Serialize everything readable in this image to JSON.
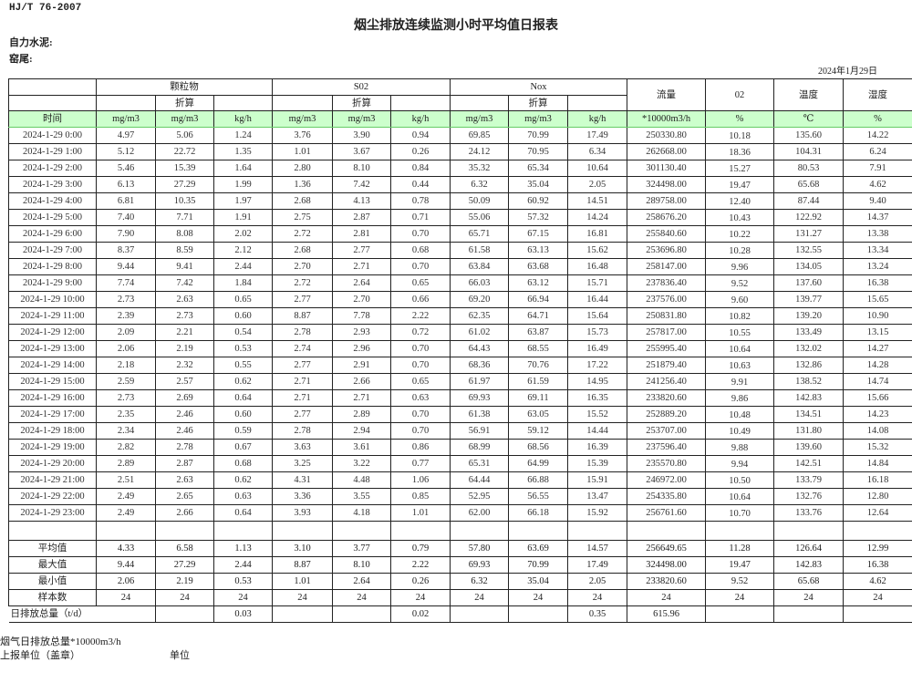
{
  "header": {
    "standard": "HJ/T  76-2007",
    "title": "烟尘排放连续监测小时平均值日报表",
    "company": "自力水泥:",
    "location": "窑尾:",
    "date": "2024年1月29日"
  },
  "table": {
    "groups": {
      "particulate": "颗粒物",
      "so2": "S02",
      "nox": "Nox",
      "flow": "流量",
      "o2": "02",
      "temp": "温度",
      "humidity": "湿度",
      "converted": "折算"
    },
    "units": [
      "时间",
      "mg/m3",
      "mg/m3",
      "kg/h",
      "mg/m3",
      "mg/m3",
      "kg/h",
      "mg/m3",
      "mg/m3",
      "kg/h",
      "*10000m3/h",
      "%",
      "℃",
      "%"
    ],
    "rows": [
      [
        "2024-1-29 0:00",
        "4.97",
        "5.06",
        "1.24",
        "3.76",
        "3.90",
        "0.94",
        "69.85",
        "70.99",
        "17.49",
        "250330.80",
        "10.18",
        "135.60",
        "14.22"
      ],
      [
        "2024-1-29 1:00",
        "5.12",
        "22.72",
        "1.35",
        "1.01",
        "3.67",
        "0.26",
        "24.12",
        "70.95",
        "6.34",
        "262668.00",
        "18.36",
        "104.31",
        "6.24"
      ],
      [
        "2024-1-29 2:00",
        "5.46",
        "15.39",
        "1.64",
        "2.80",
        "8.10",
        "0.84",
        "35.32",
        "65.34",
        "10.64",
        "301130.40",
        "15.27",
        "80.53",
        "7.91"
      ],
      [
        "2024-1-29 3:00",
        "6.13",
        "27.29",
        "1.99",
        "1.36",
        "7.42",
        "0.44",
        "6.32",
        "35.04",
        "2.05",
        "324498.00",
        "19.47",
        "65.68",
        "4.62"
      ],
      [
        "2024-1-29 4:00",
        "6.81",
        "10.35",
        "1.97",
        "2.68",
        "4.13",
        "0.78",
        "50.09",
        "60.92",
        "14.51",
        "289758.00",
        "12.40",
        "87.44",
        "9.40"
      ],
      [
        "2024-1-29 5:00",
        "7.40",
        "7.71",
        "1.91",
        "2.75",
        "2.87",
        "0.71",
        "55.06",
        "57.32",
        "14.24",
        "258676.20",
        "10.43",
        "122.92",
        "14.37"
      ],
      [
        "2024-1-29 6:00",
        "7.90",
        "8.08",
        "2.02",
        "2.72",
        "2.81",
        "0.70",
        "65.71",
        "67.15",
        "16.81",
        "255840.60",
        "10.22",
        "131.27",
        "13.38"
      ],
      [
        "2024-1-29 7:00",
        "8.37",
        "8.59",
        "2.12",
        "2.68",
        "2.77",
        "0.68",
        "61.58",
        "63.13",
        "15.62",
        "253696.80",
        "10.28",
        "132.55",
        "13.34"
      ],
      [
        "2024-1-29 8:00",
        "9.44",
        "9.41",
        "2.44",
        "2.70",
        "2.71",
        "0.70",
        "63.84",
        "63.68",
        "16.48",
        "258147.00",
        "9.96",
        "134.05",
        "13.24"
      ],
      [
        "2024-1-29 9:00",
        "7.74",
        "7.42",
        "1.84",
        "2.72",
        "2.64",
        "0.65",
        "66.03",
        "63.12",
        "15.71",
        "237836.40",
        "9.52",
        "137.60",
        "16.38"
      ],
      [
        "2024-1-29 10:00",
        "2.73",
        "2.63",
        "0.65",
        "2.77",
        "2.70",
        "0.66",
        "69.20",
        "66.94",
        "16.44",
        "237576.00",
        "9.60",
        "139.77",
        "15.65"
      ],
      [
        "2024-1-29 11:00",
        "2.39",
        "2.73",
        "0.60",
        "8.87",
        "7.78",
        "2.22",
        "62.35",
        "64.71",
        "15.64",
        "250831.80",
        "10.82",
        "139.20",
        "10.90"
      ],
      [
        "2024-1-29 12:00",
        "2.09",
        "2.21",
        "0.54",
        "2.78",
        "2.93",
        "0.72",
        "61.02",
        "63.87",
        "15.73",
        "257817.00",
        "10.55",
        "133.49",
        "13.15"
      ],
      [
        "2024-1-29 13:00",
        "2.06",
        "2.19",
        "0.53",
        "2.74",
        "2.96",
        "0.70",
        "64.43",
        "68.55",
        "16.49",
        "255995.40",
        "10.64",
        "132.02",
        "14.27"
      ],
      [
        "2024-1-29 14:00",
        "2.18",
        "2.32",
        "0.55",
        "2.77",
        "2.91",
        "0.70",
        "68.36",
        "70.76",
        "17.22",
        "251879.40",
        "10.63",
        "132.86",
        "14.28"
      ],
      [
        "2024-1-29 15:00",
        "2.59",
        "2.57",
        "0.62",
        "2.71",
        "2.66",
        "0.65",
        "61.97",
        "61.59",
        "14.95",
        "241256.40",
        "9.91",
        "138.52",
        "14.74"
      ],
      [
        "2024-1-29 16:00",
        "2.73",
        "2.69",
        "0.64",
        "2.71",
        "2.71",
        "0.63",
        "69.93",
        "69.11",
        "16.35",
        "233820.60",
        "9.86",
        "142.83",
        "15.66"
      ],
      [
        "2024-1-29 17:00",
        "2.35",
        "2.46",
        "0.60",
        "2.77",
        "2.89",
        "0.70",
        "61.38",
        "63.05",
        "15.52",
        "252889.20",
        "10.48",
        "134.51",
        "14.23"
      ],
      [
        "2024-1-29 18:00",
        "2.34",
        "2.46",
        "0.59",
        "2.78",
        "2.94",
        "0.70",
        "56.91",
        "59.12",
        "14.44",
        "253707.00",
        "10.49",
        "131.80",
        "14.08"
      ],
      [
        "2024-1-29 19:00",
        "2.82",
        "2.78",
        "0.67",
        "3.63",
        "3.61",
        "0.86",
        "68.99",
        "68.56",
        "16.39",
        "237596.40",
        "9.88",
        "139.60",
        "15.32"
      ],
      [
        "2024-1-29 20:00",
        "2.89",
        "2.87",
        "0.68",
        "3.25",
        "3.22",
        "0.77",
        "65.31",
        "64.99",
        "15.39",
        "235570.80",
        "9.94",
        "142.51",
        "14.84"
      ],
      [
        "2024-1-29 21:00",
        "2.51",
        "2.63",
        "0.62",
        "4.31",
        "4.48",
        "1.06",
        "64.44",
        "66.88",
        "15.91",
        "246972.00",
        "10.50",
        "133.79",
        "16.18"
      ],
      [
        "2024-1-29 22:00",
        "2.49",
        "2.65",
        "0.63",
        "3.36",
        "3.55",
        "0.85",
        "52.95",
        "56.55",
        "13.47",
        "254335.80",
        "10.64",
        "132.76",
        "12.80"
      ],
      [
        "2024-1-29 23:00",
        "2.49",
        "2.66",
        "0.64",
        "3.93",
        "4.18",
        "1.01",
        "62.00",
        "66.18",
        "15.92",
        "256761.60",
        "10.70",
        "133.76",
        "12.64"
      ]
    ],
    "summary": [
      [
        "平均值",
        "4.33",
        "6.58",
        "1.13",
        "3.10",
        "3.77",
        "0.79",
        "57.80",
        "63.69",
        "14.57",
        "256649.65",
        "11.28",
        "126.64",
        "12.99"
      ],
      [
        "最大值",
        "9.44",
        "27.29",
        "2.44",
        "8.87",
        "8.10",
        "2.22",
        "69.93",
        "70.99",
        "17.49",
        "324498.00",
        "19.47",
        "142.83",
        "16.38"
      ],
      [
        "最小值",
        "2.06",
        "2.19",
        "0.53",
        "1.01",
        "2.64",
        "0.26",
        "6.32",
        "35.04",
        "2.05",
        "233820.60",
        "9.52",
        "65.68",
        "4.62"
      ],
      [
        "样本数",
        "24",
        "24",
        "24",
        "24",
        "24",
        "24",
        "24",
        "24",
        "24",
        "24",
        "24",
        "24",
        "24"
      ]
    ],
    "daily_total": {
      "label": "日排放总量（t/d）",
      "values": [
        "",
        "0.03",
        "",
        "",
        "0.02",
        "",
        "",
        "0.35",
        "615.96",
        "",
        "",
        ""
      ]
    }
  },
  "footer": {
    "flue_gas_total": "烟气日排放总量*10000m3/h",
    "reporting_unit": "上报单位（盖章）",
    "unit": "单位"
  },
  "colors": {
    "unit_row_bg": "#ccffcc",
    "border": "#222222"
  }
}
